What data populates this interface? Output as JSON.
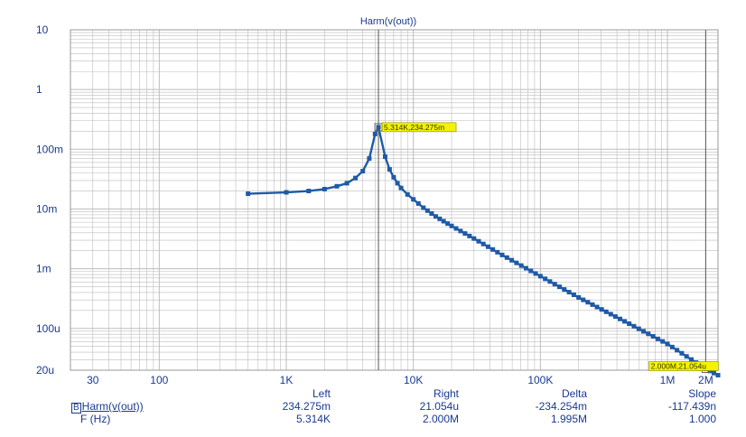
{
  "chart_data": {
    "type": "line",
    "title": "Harm(v(out))",
    "xscale": "log",
    "yscale": "log",
    "xlim": [
      20,
      2500000
    ],
    "ylim": [
      2e-05,
      10
    ],
    "grid": true,
    "colors": {
      "series": "#1f5aa6",
      "grid": "#bdbdbd",
      "text": "#1a3a8f",
      "marker_box": "#f3f300"
    },
    "x_tick_labels": [
      {
        "value": 30,
        "label": "30"
      },
      {
        "value": 100,
        "label": "100"
      },
      {
        "value": 1000,
        "label": "1K"
      },
      {
        "value": 10000,
        "label": "10K"
      },
      {
        "value": 100000,
        "label": "100K"
      },
      {
        "value": 1000000,
        "label": "1M"
      },
      {
        "value": 2000000,
        "label": "2M"
      }
    ],
    "y_tick_labels": [
      {
        "value": 10,
        "label": "10"
      },
      {
        "value": 1,
        "label": "1"
      },
      {
        "value": 0.1,
        "label": "100m"
      },
      {
        "value": 0.01,
        "label": "10m"
      },
      {
        "value": 0.001,
        "label": "1m"
      },
      {
        "value": 0.0001,
        "label": "100u"
      },
      {
        "value": 2e-05,
        "label": "20u"
      }
    ],
    "series": [
      {
        "points": [
          [
            500,
            0.018
          ],
          [
            1000,
            0.019
          ],
          [
            1500,
            0.02
          ],
          [
            2000,
            0.0215
          ],
          [
            2500,
            0.024
          ],
          [
            3000,
            0.027
          ],
          [
            3500,
            0.033
          ],
          [
            4000,
            0.043
          ],
          [
            4500,
            0.07
          ],
          [
            5000,
            0.18
          ],
          [
            5314,
            0.234275
          ],
          [
            6000,
            0.075
          ],
          [
            6500,
            0.046
          ],
          [
            7000,
            0.034
          ],
          [
            7500,
            0.027
          ],
          [
            8000,
            0.0225
          ],
          [
            9000,
            0.0175
          ],
          [
            10000,
            0.0145
          ],
          [
            12000,
            0.0105
          ],
          [
            15000,
            0.0075
          ],
          [
            20000,
            0.0052
          ],
          [
            30000,
            0.0032
          ],
          [
            50000,
            0.0017
          ],
          [
            100000,
            0.00075
          ],
          [
            200000,
            0.00033
          ],
          [
            500000,
            0.00012
          ],
          [
            1000000,
            5.5e-05
          ],
          [
            2000000,
            2.1054e-05
          ],
          [
            2500000,
            1.65e-05
          ]
        ]
      }
    ],
    "markers": [
      {
        "x": 5314,
        "y": 0.234275,
        "label": "5.314K,234.275m"
      },
      {
        "x": 2000000,
        "y": 2.1054e-05,
        "label": "2.000M,21.054u"
      }
    ]
  },
  "cursor_table": {
    "headers": {
      "left": "Left",
      "right": "Right",
      "delta": "Delta",
      "slope": "Slope"
    },
    "row1": {
      "badge": "B",
      "name": "Harm(v(out))",
      "left": "234.275m",
      "right": "21.054u",
      "delta": "-234.254m",
      "slope": "-117.439n"
    },
    "row2": {
      "name": "F (Hz)",
      "left": "5.314K",
      "right": "2.000M",
      "delta": "1.995M",
      "slope": "1.000"
    }
  }
}
